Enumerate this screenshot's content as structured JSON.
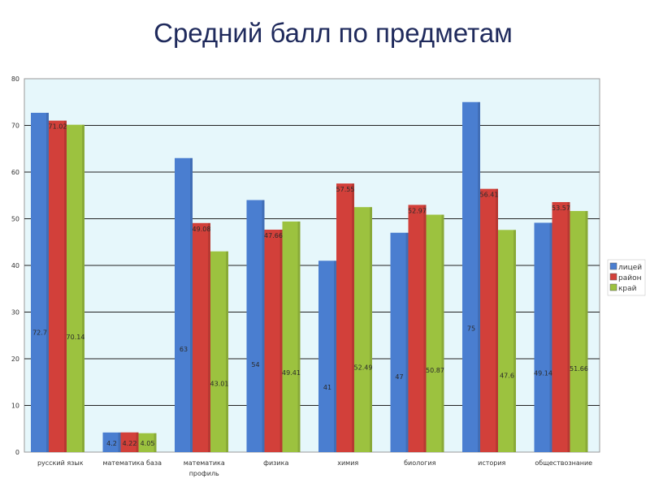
{
  "chart_data": {
    "type": "bar",
    "title": "Средний балл по предметам",
    "categories": [
      "русский язык",
      "математика база",
      "математика профиль",
      "физика",
      "химия",
      "биология",
      "история",
      "обществознание"
    ],
    "series": [
      {
        "name": "лицей",
        "color": "#4a7ed0",
        "values": [
          72.7,
          4.2,
          63,
          54,
          41,
          47,
          75,
          49.14
        ]
      },
      {
        "name": "район",
        "color": "#d2403a",
        "values": [
          71.02,
          4.22,
          49.08,
          47.66,
          57.55,
          52.97,
          56.41,
          53.57
        ]
      },
      {
        "name": "край",
        "color": "#9cc23f",
        "values": [
          70.14,
          4.05,
          43.01,
          49.41,
          52.49,
          50.87,
          47.6,
          51.66
        ]
      }
    ],
    "data_labels": [
      [
        "72.7",
        "71.02",
        "70.14"
      ],
      [
        "4.2",
        "4.22",
        "4.05"
      ],
      [
        "63",
        "49.08",
        "43.01"
      ],
      [
        "54",
        "47.66",
        "49.41"
      ],
      [
        "41",
        "57.55",
        "52.49"
      ],
      [
        "47",
        "52.97",
        "50.87"
      ],
      [
        "75",
        "56.41",
        "47.6"
      ],
      [
        "49.14",
        "53.57",
        "51.66"
      ]
    ],
    "ylim": [
      0,
      80
    ],
    "yticks": [
      0,
      10,
      20,
      30,
      40,
      50,
      60,
      70,
      80
    ],
    "grid": true,
    "legend": "right",
    "plot_background": "#e6f7fb"
  }
}
